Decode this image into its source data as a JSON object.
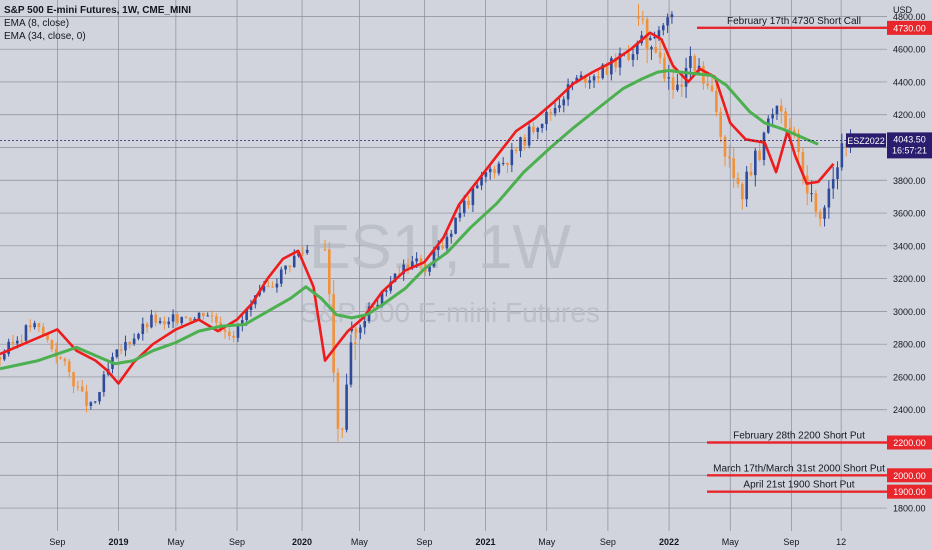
{
  "legend": {
    "title": "S&P 500 E-mini Futures, 1W, CME_MINI",
    "ema1": "EMA (8, close)",
    "ema2": "EMA (34, close, 0)"
  },
  "watermark": {
    "symbol": "ES1!, 1W",
    "name": "S&P 500 E-mini Futures"
  },
  "colors": {
    "background": "#d1d4dc",
    "grid": "#8a8d98",
    "up": "#2e4a9a",
    "down": "#f0913c",
    "ema_fast": "#ee1c1c",
    "ema_slow": "#4caf50",
    "level_line": "#e8262c",
    "price_tag": "#2a1c6e"
  },
  "chart_data": {
    "type": "candlestick",
    "title": "S&P 500 E-mini Futures, 1W, CME_MINI",
    "ylabel": "USD",
    "ylim": [
      1660,
      4900
    ],
    "yticks": [
      1800,
      2000,
      2200,
      2400,
      2600,
      2800,
      3000,
      3200,
      3400,
      3600,
      3800,
      4000,
      4200,
      4400,
      4600,
      4800
    ],
    "xticks": [
      "Sep",
      "2019",
      "May",
      "Sep",
      "2020",
      "May",
      "Sep",
      "2021",
      "May",
      "Sep",
      "2022",
      "May",
      "Sep",
      "12"
    ],
    "xlim": [
      0,
      232
    ],
    "tick_positions": [
      15,
      31,
      46,
      62,
      79,
      94,
      111,
      127,
      143,
      159,
      175,
      191,
      207,
      220
    ],
    "series": [
      {
        "name": "EMA (8, close)",
        "x": [
          0,
          8,
          15,
          20,
          25,
          28,
          31,
          35,
          40,
          46,
          52,
          57,
          62,
          66,
          70,
          74,
          78,
          82,
          85,
          88,
          91,
          95,
          100,
          106,
          111,
          116,
          120,
          125,
          130,
          135,
          140,
          145,
          150,
          155,
          160,
          165,
          170,
          173,
          176,
          180,
          183,
          187,
          191,
          195,
          200,
          203,
          206,
          208,
          211,
          214,
          218
        ],
        "y": [
          2740,
          2820,
          2890,
          2760,
          2700,
          2640,
          2560,
          2690,
          2800,
          2890,
          2950,
          2880,
          2950,
          3050,
          3200,
          3320,
          3370,
          3150,
          2700,
          2790,
          2880,
          2960,
          3120,
          3250,
          3300,
          3450,
          3650,
          3800,
          3950,
          4100,
          4180,
          4280,
          4390,
          4460,
          4520,
          4600,
          4700,
          4660,
          4500,
          4400,
          4480,
          4430,
          4150,
          4050,
          4030,
          3850,
          4100,
          3950,
          3780,
          3790,
          3900
        ]
      },
      {
        "name": "EMA (34, close, 0)",
        "x": [
          0,
          10,
          20,
          25,
          30,
          35,
          40,
          46,
          52,
          58,
          64,
          70,
          76,
          80,
          84,
          88,
          92,
          96,
          100,
          106,
          111,
          117,
          123,
          130,
          137,
          144,
          150,
          157,
          163,
          168,
          172,
          175,
          178,
          182,
          186,
          190,
          196,
          200,
          205,
          210,
          214
        ],
        "y": [
          2650,
          2700,
          2780,
          2730,
          2680,
          2700,
          2760,
          2810,
          2880,
          2910,
          2920,
          3000,
          3080,
          3150,
          3080,
          2980,
          2960,
          2980,
          3040,
          3140,
          3260,
          3360,
          3510,
          3660,
          3850,
          4000,
          4120,
          4250,
          4360,
          4420,
          4460,
          4470,
          4460,
          4450,
          4440,
          4380,
          4220,
          4150,
          4110,
          4060,
          4020
        ]
      }
    ],
    "candles": [
      {
        "n": 72,
        "x0": 0,
        "p": [
          2720,
          2790,
          2850,
          2920,
          2880,
          2790,
          2700,
          2600,
          2480,
          2400,
          2560,
          2700,
          2780,
          2850,
          2900,
          2960,
          2900,
          2950,
          2990,
          2960,
          3010,
          2950,
          2900,
          2860,
          2990,
          3070,
          3130,
          3200,
          3280,
          3350,
          3380
        ],
        "amp": 48,
        "seed": 3
      },
      {
        "n": 8,
        "x0": 85,
        "p": [
          3380,
          3150,
          2700,
          2300,
          2250,
          2600,
          2800,
          2880
        ],
        "amp": 110,
        "seed": 7
      },
      {
        "n": 75,
        "x0": 92,
        "p": [
          2880,
          2950,
          3050,
          3150,
          3250,
          3300,
          3260,
          3380,
          3500,
          3650,
          3720,
          3850,
          3900,
          3950,
          4050,
          4150,
          4200,
          4300,
          4400,
          4430,
          4450,
          4500,
          4550,
          4600,
          4680,
          4730,
          4800
        ],
        "amp": 55,
        "seed": 11
      },
      {
        "n": 50,
        "x0": 167,
        "p": [
          4800,
          4650,
          4550,
          4400,
          4300,
          4500,
          4450,
          4350,
          4150,
          3900,
          3700,
          3850,
          3950,
          4200,
          4300,
          4100,
          3900,
          3700,
          3600,
          3800,
          3950,
          4040
        ],
        "amp": 95,
        "seed": 5
      }
    ],
    "last_price": 4043.5
  },
  "price_tag": {
    "symbol": "ESZ2022",
    "price": "4043.50",
    "countdown": "16:57:21"
  },
  "levels": [
    {
      "label": "February 17th 4730 Short Call",
      "price": 4730,
      "tag": "4730.00"
    },
    {
      "label": "February 28th 2200 Short Put",
      "price": 2200,
      "tag": "2200.00"
    },
    {
      "label": "March 17th/March 31st 2000 Short Put",
      "price": 2000,
      "tag": "2000.00"
    },
    {
      "label": "April 21st 1900 Short Put",
      "price": 1900,
      "tag": "1900.00"
    }
  ]
}
